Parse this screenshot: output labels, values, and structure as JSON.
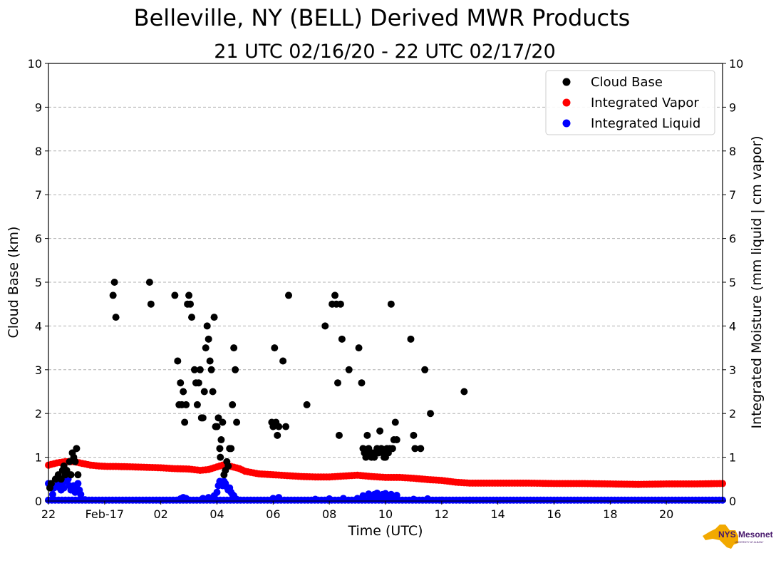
{
  "chart_data": {
    "type": "scatter",
    "title": "Belleville, NY (BELL) Derived MWR Products",
    "subtitle": "21 UTC 02/16/20 - 22 UTC 02/17/20",
    "xlabel": "Time (UTC)",
    "ylabel_left": "Cloud Base (km)",
    "ylabel_right": "Integrated Moisture (mm liquid | cm vapor)",
    "xlim": [
      0,
      24
    ],
    "ylim": [
      0,
      10
    ],
    "x_units": "hours after 22 UTC 02/16/20",
    "x_ticks": [
      {
        "x": 0,
        "label": "22"
      },
      {
        "x": 2,
        "label": "Feb-17"
      },
      {
        "x": 4,
        "label": "02"
      },
      {
        "x": 6,
        "label": "04"
      },
      {
        "x": 8,
        "label": "06"
      },
      {
        "x": 10,
        "label": "08"
      },
      {
        "x": 12,
        "label": "10"
      },
      {
        "x": 14,
        "label": "12"
      },
      {
        "x": 16,
        "label": "14"
      },
      {
        "x": 18,
        "label": "16"
      },
      {
        "x": 20,
        "label": "18"
      },
      {
        "x": 22,
        "label": "20"
      }
    ],
    "y_ticks": [
      "0",
      "1",
      "2",
      "3",
      "4",
      "5",
      "6",
      "7",
      "8",
      "9",
      "10"
    ],
    "grid": "horizontal dashed",
    "legend_position": "top-right",
    "series": [
      {
        "name": "Cloud Base",
        "color": "#000000",
        "points": [
          [
            0.05,
            0.3
          ],
          [
            0.1,
            0.4
          ],
          [
            0.25,
            0.5
          ],
          [
            0.35,
            0.6
          ],
          [
            0.45,
            0.5
          ],
          [
            0.5,
            0.7
          ],
          [
            0.55,
            0.8
          ],
          [
            0.6,
            0.6
          ],
          [
            0.65,
            0.7
          ],
          [
            0.75,
            0.9
          ],
          [
            0.8,
            0.6
          ],
          [
            0.85,
            1.1
          ],
          [
            0.9,
            1.0
          ],
          [
            0.95,
            0.9
          ],
          [
            1.0,
            1.2
          ],
          [
            1.05,
            0.6
          ],
          [
            2.3,
            4.7
          ],
          [
            2.35,
            5.0
          ],
          [
            2.4,
            4.2
          ],
          [
            3.6,
            5.0
          ],
          [
            3.65,
            4.5
          ],
          [
            4.5,
            4.7
          ],
          [
            4.6,
            3.2
          ],
          [
            4.65,
            2.2
          ],
          [
            4.7,
            2.7
          ],
          [
            4.75,
            2.2
          ],
          [
            4.8,
            2.5
          ],
          [
            4.85,
            1.8
          ],
          [
            4.9,
            2.2
          ],
          [
            4.95,
            4.5
          ],
          [
            5.0,
            4.7
          ],
          [
            5.05,
            4.5
          ],
          [
            5.1,
            4.2
          ],
          [
            5.2,
            3.0
          ],
          [
            5.25,
            2.7
          ],
          [
            5.3,
            2.2
          ],
          [
            5.35,
            2.7
          ],
          [
            5.4,
            3.0
          ],
          [
            5.45,
            1.9
          ],
          [
            5.5,
            1.9
          ],
          [
            5.55,
            2.5
          ],
          [
            5.6,
            3.5
          ],
          [
            5.65,
            4.0
          ],
          [
            5.7,
            3.7
          ],
          [
            5.75,
            3.2
          ],
          [
            5.8,
            3.0
          ],
          [
            5.85,
            2.5
          ],
          [
            5.9,
            4.2
          ],
          [
            5.95,
            1.7
          ],
          [
            6.0,
            1.7
          ],
          [
            6.05,
            1.9
          ],
          [
            6.1,
            1.2
          ],
          [
            6.12,
            1.0
          ],
          [
            6.15,
            1.4
          ],
          [
            6.2,
            1.8
          ],
          [
            6.25,
            0.6
          ],
          [
            6.3,
            0.7
          ],
          [
            6.35,
            0.9
          ],
          [
            6.4,
            0.8
          ],
          [
            6.45,
            1.2
          ],
          [
            6.5,
            1.2
          ],
          [
            6.55,
            2.2
          ],
          [
            6.6,
            3.5
          ],
          [
            6.65,
            3.0
          ],
          [
            6.7,
            1.8
          ],
          [
            7.95,
            1.8
          ],
          [
            8.0,
            1.7
          ],
          [
            8.05,
            3.5
          ],
          [
            8.1,
            1.8
          ],
          [
            8.15,
            1.5
          ],
          [
            8.2,
            1.7
          ],
          [
            8.35,
            3.2
          ],
          [
            8.45,
            1.7
          ],
          [
            8.55,
            4.7
          ],
          [
            9.2,
            2.2
          ],
          [
            9.85,
            4.0
          ],
          [
            10.1,
            4.5
          ],
          [
            10.2,
            4.7
          ],
          [
            10.25,
            4.5
          ],
          [
            10.3,
            2.7
          ],
          [
            10.35,
            1.5
          ],
          [
            10.4,
            4.5
          ],
          [
            10.45,
            3.7
          ],
          [
            10.7,
            3.0
          ],
          [
            11.05,
            3.5
          ],
          [
            11.15,
            2.7
          ],
          [
            11.2,
            1.2
          ],
          [
            11.25,
            1.1
          ],
          [
            11.3,
            1.0
          ],
          [
            11.35,
            1.5
          ],
          [
            11.4,
            1.2
          ],
          [
            11.45,
            1.1
          ],
          [
            11.5,
            1.0
          ],
          [
            11.55,
            1.1
          ],
          [
            11.6,
            1.0
          ],
          [
            11.65,
            1.1
          ],
          [
            11.7,
            1.2
          ],
          [
            11.75,
            1.1
          ],
          [
            11.8,
            1.6
          ],
          [
            11.85,
            1.2
          ],
          [
            11.9,
            1.1
          ],
          [
            11.95,
            1.0
          ],
          [
            12.0,
            1.0
          ],
          [
            12.05,
            1.2
          ],
          [
            12.1,
            1.1
          ],
          [
            12.15,
            1.2
          ],
          [
            12.2,
            4.5
          ],
          [
            12.25,
            1.2
          ],
          [
            12.3,
            1.4
          ],
          [
            12.35,
            1.8
          ],
          [
            12.4,
            1.4
          ],
          [
            12.9,
            3.7
          ],
          [
            13.0,
            1.5
          ],
          [
            13.05,
            1.2
          ],
          [
            13.25,
            1.2
          ],
          [
            13.4,
            3.0
          ],
          [
            13.6,
            2.0
          ],
          [
            14.8,
            2.5
          ]
        ]
      },
      {
        "name": "Integrated Vapor",
        "color": "#ff0000",
        "points": [
          [
            0,
            0.82
          ],
          [
            0.3,
            0.87
          ],
          [
            0.6,
            0.9
          ],
          [
            0.9,
            0.9
          ],
          [
            1.2,
            0.86
          ],
          [
            1.5,
            0.82
          ],
          [
            1.8,
            0.8
          ],
          [
            2.1,
            0.79
          ],
          [
            2.4,
            0.79
          ],
          [
            3.0,
            0.78
          ],
          [
            3.5,
            0.77
          ],
          [
            4.0,
            0.76
          ],
          [
            4.5,
            0.74
          ],
          [
            5.0,
            0.73
          ],
          [
            5.4,
            0.7
          ],
          [
            5.7,
            0.72
          ],
          [
            6.0,
            0.78
          ],
          [
            6.2,
            0.82
          ],
          [
            6.5,
            0.79
          ],
          [
            6.8,
            0.74
          ],
          [
            7.0,
            0.68
          ],
          [
            7.5,
            0.62
          ],
          [
            8.0,
            0.6
          ],
          [
            8.5,
            0.58
          ],
          [
            9.0,
            0.56
          ],
          [
            9.5,
            0.55
          ],
          [
            10.0,
            0.55
          ],
          [
            10.5,
            0.57
          ],
          [
            11.0,
            0.59
          ],
          [
            11.5,
            0.56
          ],
          [
            12.0,
            0.54
          ],
          [
            12.5,
            0.54
          ],
          [
            13.0,
            0.52
          ],
          [
            13.5,
            0.49
          ],
          [
            14.0,
            0.47
          ],
          [
            14.5,
            0.43
          ],
          [
            15.0,
            0.41
          ],
          [
            16.0,
            0.41
          ],
          [
            17.0,
            0.41
          ],
          [
            18.0,
            0.4
          ],
          [
            19.0,
            0.4
          ],
          [
            20.0,
            0.39
          ],
          [
            21.0,
            0.38
          ],
          [
            22.0,
            0.39
          ],
          [
            23.0,
            0.39
          ],
          [
            24.0,
            0.4
          ]
        ]
      },
      {
        "name": "Integrated Liquid",
        "color": "#0000ff",
        "points": [
          [
            0,
            0.4
          ],
          [
            0.1,
            0.3
          ],
          [
            0.15,
            0.15
          ],
          [
            0.2,
            0.3
          ],
          [
            0.3,
            0.35
          ],
          [
            0.35,
            0.45
          ],
          [
            0.4,
            0.3
          ],
          [
            0.45,
            0.25
          ],
          [
            0.5,
            0.4
          ],
          [
            0.55,
            0.3
          ],
          [
            0.6,
            0.45
          ],
          [
            0.7,
            0.5
          ],
          [
            0.75,
            0.35
          ],
          [
            0.8,
            0.25
          ],
          [
            0.85,
            0.3
          ],
          [
            0.9,
            0.35
          ],
          [
            0.95,
            0.2
          ],
          [
            1.0,
            0.3
          ],
          [
            1.05,
            0.4
          ],
          [
            1.1,
            0.25
          ],
          [
            1.15,
            0.15
          ],
          [
            1.3,
            0.03
          ],
          [
            4.7,
            0.05
          ],
          [
            4.8,
            0.08
          ],
          [
            4.9,
            0.06
          ],
          [
            5.5,
            0.06
          ],
          [
            5.7,
            0.08
          ],
          [
            5.9,
            0.12
          ],
          [
            6.0,
            0.2
          ],
          [
            6.05,
            0.35
          ],
          [
            6.1,
            0.45
          ],
          [
            6.15,
            0.4
          ],
          [
            6.2,
            0.35
          ],
          [
            6.25,
            0.45
          ],
          [
            6.3,
            0.4
          ],
          [
            6.35,
            0.32
          ],
          [
            6.4,
            0.25
          ],
          [
            6.45,
            0.3
          ],
          [
            6.5,
            0.2
          ],
          [
            6.55,
            0.15
          ],
          [
            6.6,
            0.12
          ],
          [
            6.7,
            0.04
          ],
          [
            8.0,
            0.06
          ],
          [
            8.2,
            0.08
          ],
          [
            9.5,
            0.04
          ],
          [
            10.0,
            0.05
          ],
          [
            10.5,
            0.06
          ],
          [
            11.0,
            0.06
          ],
          [
            11.2,
            0.12
          ],
          [
            11.4,
            0.16
          ],
          [
            11.5,
            0.12
          ],
          [
            11.6,
            0.15
          ],
          [
            11.7,
            0.18
          ],
          [
            11.8,
            0.12
          ],
          [
            11.9,
            0.15
          ],
          [
            12.0,
            0.17
          ],
          [
            12.1,
            0.13
          ],
          [
            12.2,
            0.15
          ],
          [
            12.3,
            0.1
          ],
          [
            12.4,
            0.13
          ],
          [
            13.0,
            0.04
          ],
          [
            13.5,
            0.05
          ],
          [
            14.0,
            0.02
          ],
          [
            15.0,
            0.02
          ]
        ],
        "baseline": 0.02
      }
    ]
  },
  "logo": {
    "text": "NYS Mesonet",
    "subtext": "UNIVERSITY AT ALBANY",
    "colors": {
      "state": "#f2a900",
      "text": "#46166b"
    }
  }
}
